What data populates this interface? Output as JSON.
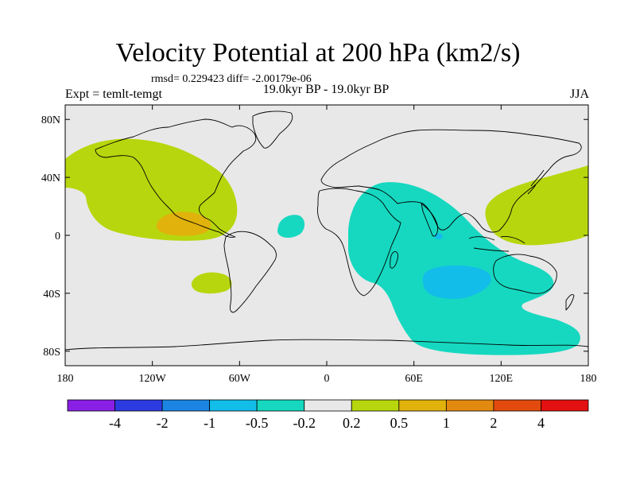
{
  "title": "Velocity Potential at 200 hPa (km2/s)",
  "stats": "rmsd= 0.229423  diff= -2.00179e-06",
  "period": "19.0kyr BP - 19.0kyr BP",
  "experiment": "Expt = temlt-temgt",
  "season": "JJA",
  "map": {
    "projection": "cylindrical equidistant",
    "lon_range": [
      -180,
      180
    ],
    "lat_range": [
      -90,
      90
    ],
    "background_color": "#e8e8e8",
    "lat_ticks": [
      {
        "value": 80,
        "label": "80N"
      },
      {
        "value": 40,
        "label": "40N"
      },
      {
        "value": 0,
        "label": "0"
      },
      {
        "value": -40,
        "label": "40S"
      },
      {
        "value": -80,
        "label": "80S"
      }
    ],
    "lon_ticks": [
      {
        "value": -180,
        "label": "180"
      },
      {
        "value": -120,
        "label": "120W"
      },
      {
        "value": -60,
        "label": "60W"
      },
      {
        "value": 0,
        "label": "0"
      },
      {
        "value": 60,
        "label": "60E"
      },
      {
        "value": 120,
        "label": "120E"
      },
      {
        "value": 180,
        "label": "180"
      }
    ]
  },
  "colorbar": {
    "colors": [
      "#8a1fe6",
      "#2c3be0",
      "#1c85e3",
      "#13bde9",
      "#16d8c0",
      "#e8e8e8",
      "#b8d60d",
      "#e1b20c",
      "#e28a0f",
      "#e34b0e",
      "#e21010"
    ],
    "labels": [
      "-4",
      "-2",
      "-1",
      "-0.5",
      "-0.2",
      "0.2",
      "0.5",
      "1",
      "2",
      "4"
    ]
  }
}
